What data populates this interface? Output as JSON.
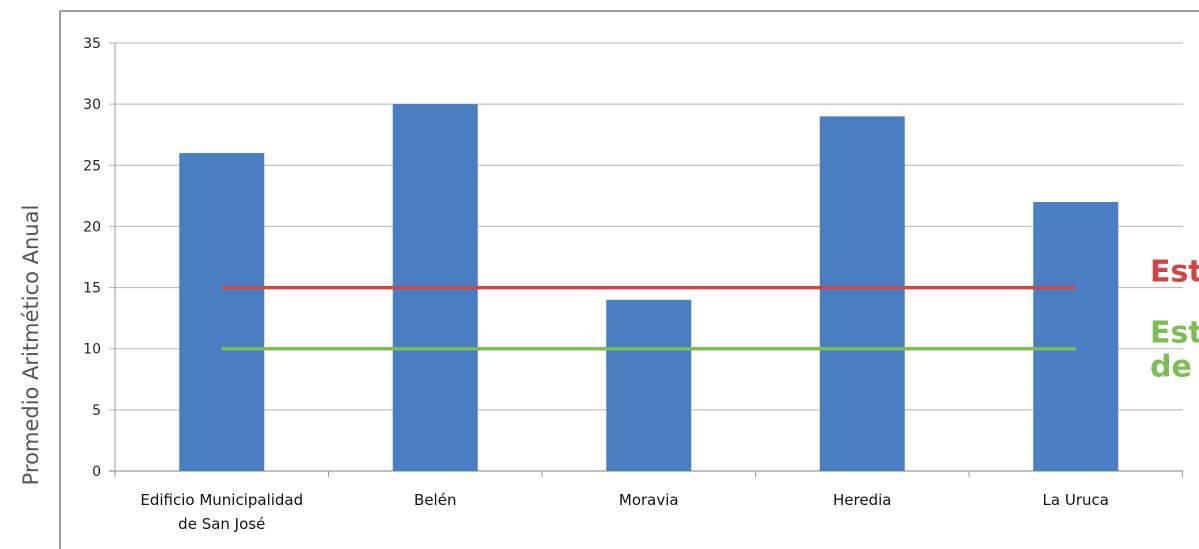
{
  "colors": {
    "bar": "#4a7ec3",
    "red_line": "#d04545",
    "green_line": "#7dbd55",
    "grid": "#b5b5b5",
    "frame": "#9a9a9a"
  },
  "chart_data": {
    "type": "bar",
    "ylabel": "Promedio Aritmético Anual",
    "xlabel": "",
    "title": "",
    "ylim": [
      0,
      35
    ],
    "yticks": [
      0,
      5,
      10,
      15,
      20,
      25,
      30,
      35
    ],
    "grid": true,
    "categories": [
      [
        "Edificio Municipalidad",
        "de San José"
      ],
      [
        "Belén"
      ],
      [
        "Moravia"
      ],
      [
        "Heredia"
      ],
      [
        "La Uruca"
      ]
    ],
    "values": [
      26,
      30,
      14,
      29,
      22
    ],
    "reference_lines": [
      {
        "value": 15,
        "label_lines": [
          "Est"
        ],
        "color": "#d04545"
      },
      {
        "value": 10,
        "label_lines": [
          "Est",
          "de"
        ],
        "color": "#7dbd55"
      }
    ]
  }
}
